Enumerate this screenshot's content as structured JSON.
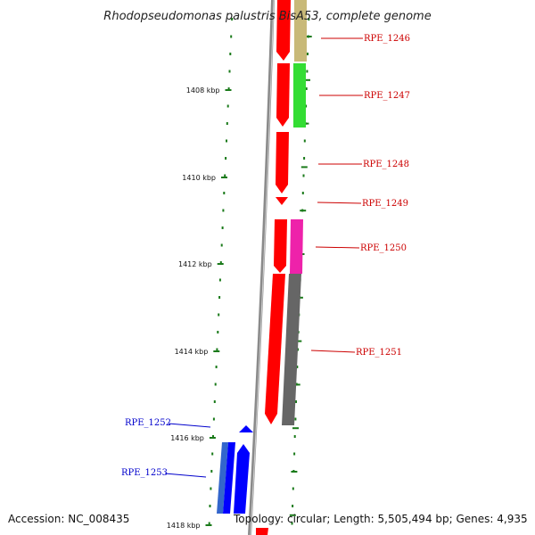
{
  "title": "Rhodopseudomonas palustris BisA53, complete genome",
  "footer": {
    "accession": "Accession: NC_008435",
    "summary": "Topology: circular; Length: 5,505,494 bp; Genes: 4,935"
  },
  "colors": {
    "tick": "#1a7a1a",
    "backbone": "#8a8a8a",
    "forward_strand": "#ff0000",
    "red_label": "#cc0000",
    "blue_label": "#0000cc"
  },
  "ticks": [
    "1408 kbp",
    "1410 kbp",
    "1412 kbp",
    "1414 kbp",
    "1416 kbp",
    "1418 kbp"
  ],
  "genes": [
    {
      "label": "RPE_1246",
      "color": "#c8b978",
      "label_color": "#cc0000"
    },
    {
      "label": "RPE_1247",
      "color": "#33dd33",
      "label_color": "#cc0000"
    },
    {
      "label": "RPE_1248",
      "color": "#ff0000",
      "label_color": "#cc0000"
    },
    {
      "label": "RPE_1249",
      "color": "#ff0000",
      "label_color": "#cc0000"
    },
    {
      "label": "RPE_1250",
      "color": "#ee22aa",
      "label_color": "#cc0000"
    },
    {
      "label": "RPE_1251",
      "color": "#666666",
      "label_color": "#cc0000"
    },
    {
      "label": "RPE_1252",
      "color": "#0000ff",
      "label_color": "#0000cc"
    },
    {
      "label": "RPE_1253",
      "color": "#3366cc",
      "label_color": "#0000cc"
    }
  ]
}
